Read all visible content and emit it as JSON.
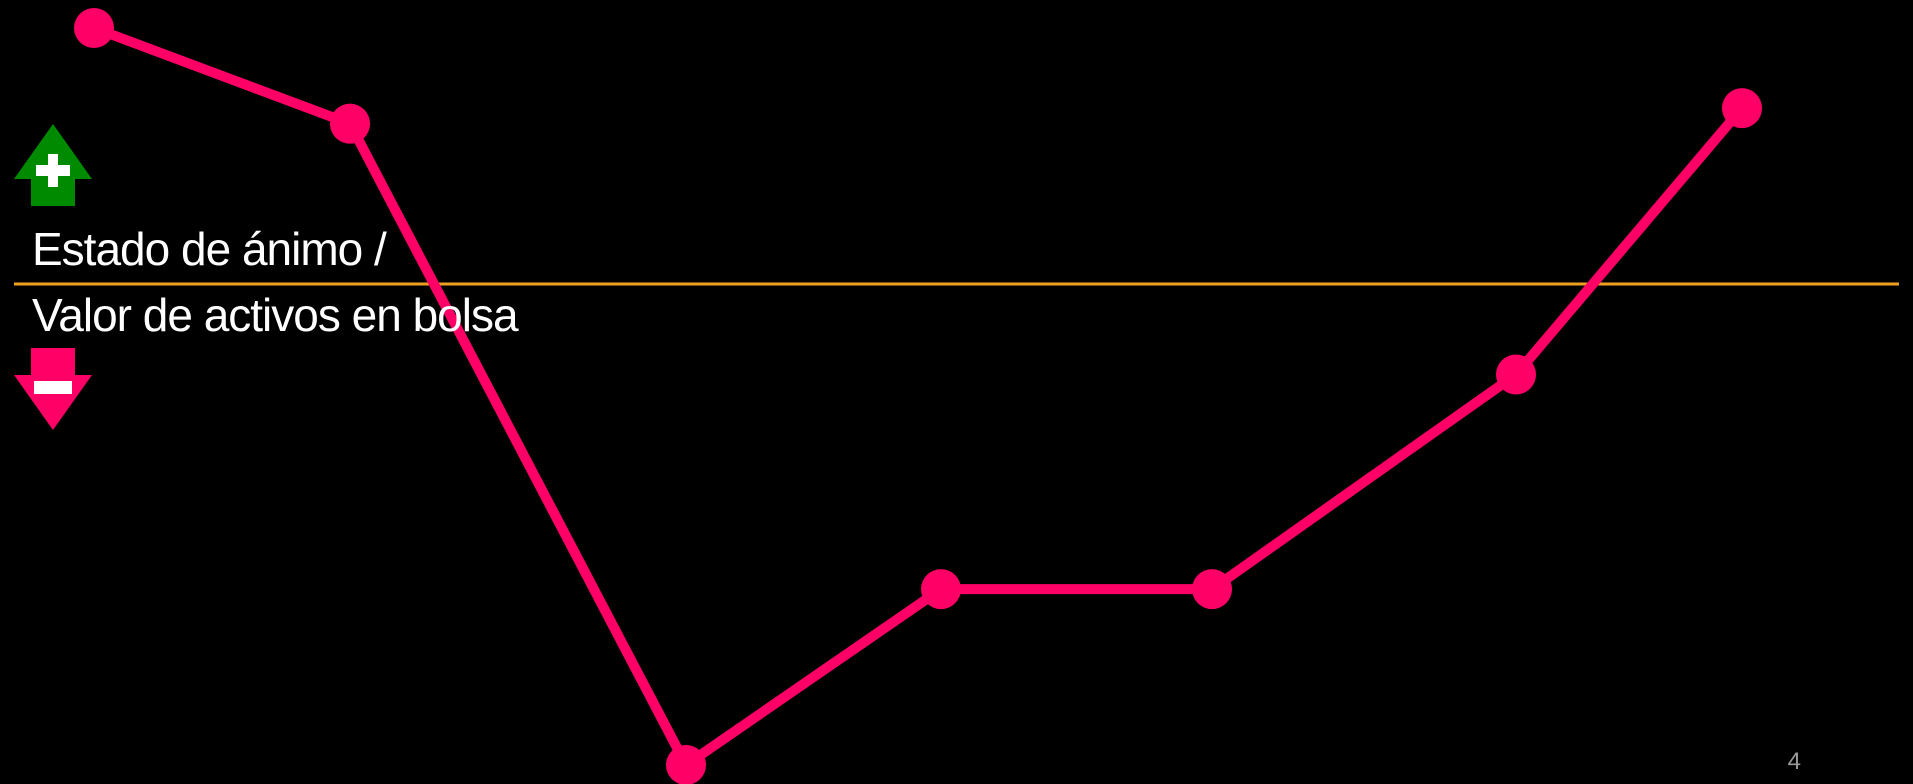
{
  "slide": {
    "page_number": "4",
    "axis_label": {
      "line1": "Estado de ánimo /",
      "line2": "Valor de activos en bolsa"
    },
    "indicators": {
      "up": "plus-arrow-icon",
      "down": "minus-arrow-icon"
    },
    "colors": {
      "background": "#000000",
      "line": "#ff0066",
      "baseline": "#f0a020",
      "up_arrow": "#008a00",
      "down_arrow": "#ff0066",
      "text": "#ffffff"
    }
  },
  "chart_data": {
    "type": "line",
    "title": "",
    "xlabel": "",
    "ylabel": "Estado de ánimo / Valor de activos en bolsa",
    "x": [
      1,
      2,
      3,
      4,
      5,
      6,
      7
    ],
    "series": [
      {
        "values": [
          1.0,
          0.63,
          -1.85,
          -1.17,
          -1.17,
          -0.34,
          0.69
        ]
      }
    ],
    "baseline": 0,
    "ylim": [
      -1.85,
      1.0
    ],
    "grid": false,
    "legend": "none"
  }
}
